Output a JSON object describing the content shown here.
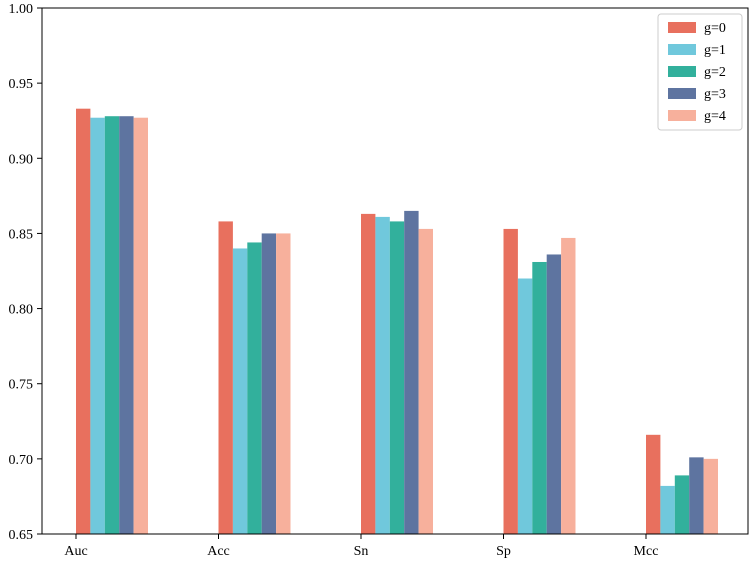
{
  "chart_data": {
    "type": "bar",
    "categories": [
      "Auc",
      "Acc",
      "Sn",
      "Sp",
      "Mcc"
    ],
    "series": [
      {
        "name": "g=0",
        "color": "#E8705E",
        "values": [
          0.933,
          0.858,
          0.863,
          0.853,
          0.716
        ]
      },
      {
        "name": "g=1",
        "color": "#70C8DC",
        "values": [
          0.927,
          0.84,
          0.861,
          0.82,
          0.682
        ]
      },
      {
        "name": "g=2",
        "color": "#32B09C",
        "values": [
          0.928,
          0.844,
          0.858,
          0.831,
          0.689
        ]
      },
      {
        "name": "g=3",
        "color": "#5E74A0",
        "values": [
          0.928,
          0.85,
          0.865,
          0.836,
          0.701
        ]
      },
      {
        "name": "g=4",
        "color": "#F7B09C",
        "values": [
          0.927,
          0.85,
          0.853,
          0.847,
          0.7
        ]
      }
    ],
    "ylim": [
      0.65,
      1.0
    ],
    "yticks": [
      "0.65",
      "0.70",
      "0.75",
      "0.80",
      "0.85",
      "0.90",
      "0.95",
      "1.00"
    ],
    "title": "",
    "xlabel": "",
    "ylabel": "",
    "legend_position": "top-right",
    "grid": false
  }
}
